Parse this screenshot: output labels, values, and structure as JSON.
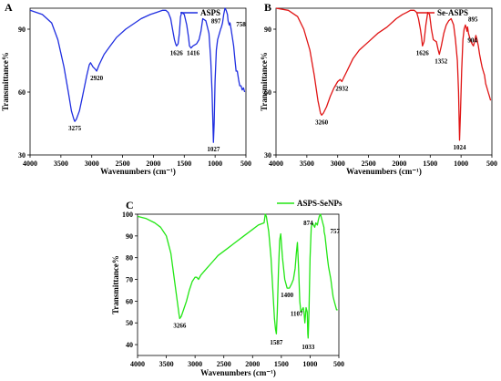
{
  "chart_data": [
    {
      "type": "line",
      "panel": "A",
      "series": [
        {
          "name": "ASPS",
          "color": "#1f2ee0",
          "x": [
            4000,
            3800,
            3650,
            3550,
            3450,
            3380,
            3330,
            3290,
            3275,
            3250,
            3200,
            3150,
            3080,
            3040,
            3020,
            2980,
            2945,
            2920,
            2880,
            2800,
            2700,
            2600,
            2450,
            2300,
            2200,
            2050,
            1950,
            1850,
            1800,
            1760,
            1720,
            1690,
            1660,
            1640,
            1626,
            1600,
            1580,
            1560,
            1540,
            1500,
            1460,
            1430,
            1416,
            1390,
            1360,
            1300,
            1260,
            1230,
            1200,
            1150,
            1100,
            1070,
            1050,
            1035,
            1027,
            1015,
            1000,
            980,
            960,
            930,
            910,
            897,
            880,
            860,
            840,
            820,
            800,
            790,
            780,
            770,
            758,
            740,
            720,
            700,
            680,
            660,
            640,
            620,
            600,
            580,
            560,
            540,
            520
          ],
          "y": [
            99,
            97,
            93,
            85,
            72,
            60,
            51,
            47,
            46,
            47,
            51,
            58,
            68,
            73,
            74,
            72,
            71,
            70,
            73,
            78,
            82,
            86,
            90,
            93,
            95,
            97,
            98,
            99,
            99,
            98,
            95,
            90,
            85,
            83,
            82,
            83,
            88,
            96,
            98,
            97,
            92,
            86,
            82,
            81,
            82,
            83,
            85,
            89,
            95,
            94,
            88,
            75,
            60,
            44,
            36,
            45,
            65,
            80,
            85,
            88,
            90,
            91,
            93,
            97,
            100,
            99,
            97,
            94,
            93,
            92,
            93,
            90,
            86,
            82,
            76,
            70,
            70,
            66,
            63,
            63,
            61,
            62,
            60
          ]
        }
      ],
      "peaks": [
        {
          "x": 3275,
          "y": 46,
          "label": "3275"
        },
        {
          "x": 2920,
          "y": 70,
          "label": "2920"
        },
        {
          "x": 1626,
          "y": 82,
          "label": "1626"
        },
        {
          "x": 1416,
          "y": 82,
          "label": "1416"
        },
        {
          "x": 1027,
          "y": 36,
          "label": "1027"
        },
        {
          "x": 897,
          "y": 91,
          "label": "897"
        },
        {
          "x": 758,
          "y": 93,
          "label": "758"
        }
      ],
      "xlim": [
        4000,
        500
      ],
      "ylim": [
        30,
        100
      ],
      "xticks": [
        4000,
        3500,
        3000,
        2500,
        2000,
        1500,
        1000,
        500
      ],
      "yticks": [
        30,
        60,
        90
      ],
      "xlabel": "Wavenumbers (cm⁻¹)",
      "ylabel": "Transmittance%",
      "legend": "top-right",
      "grid": false
    },
    {
      "type": "line",
      "panel": "B",
      "series": [
        {
          "name": "Se-ASPS",
          "color": "#e01414",
          "x": [
            4000,
            3800,
            3650,
            3550,
            3450,
            3380,
            3320,
            3280,
            3260,
            3230,
            3180,
            3120,
            3060,
            3000,
            2960,
            2932,
            2900,
            2850,
            2750,
            2650,
            2500,
            2350,
            2200,
            2050,
            1950,
            1880,
            1820,
            1760,
            1720,
            1690,
            1660,
            1640,
            1626,
            1600,
            1570,
            1540,
            1510,
            1480,
            1450,
            1400,
            1370,
            1352,
            1320,
            1280,
            1240,
            1200,
            1160,
            1120,
            1090,
            1060,
            1040,
            1030,
            1024,
            1010,
            990,
            970,
            950,
            930,
            920,
            910,
            904,
            895,
            880,
            860,
            840,
            820,
            800,
            780,
            760,
            740,
            720,
            700,
            680,
            660,
            640,
            620,
            600,
            580,
            560,
            540,
            520
          ],
          "y": [
            100,
            99,
            96,
            90,
            80,
            68,
            56,
            50,
            49,
            50,
            53,
            58,
            62,
            65,
            66,
            65,
            67,
            70,
            76,
            80,
            84,
            88,
            91,
            95,
            97,
            98,
            99,
            99,
            98,
            95,
            90,
            86,
            82,
            84,
            92,
            98,
            97,
            90,
            85,
            84,
            80,
            78,
            82,
            88,
            92,
            94,
            95,
            92,
            85,
            75,
            60,
            45,
            37,
            50,
            70,
            85,
            90,
            92,
            91,
            90,
            89,
            91,
            88,
            86,
            84,
            83,
            82,
            84,
            87,
            85,
            82,
            78,
            75,
            72,
            70,
            68,
            64,
            62,
            60,
            58,
            56
          ]
        }
      ],
      "peaks": [
        {
          "x": 3260,
          "y": 49,
          "label": "3260"
        },
        {
          "x": 2932,
          "y": 65,
          "label": "2932"
        },
        {
          "x": 1626,
          "y": 82,
          "label": "1626"
        },
        {
          "x": 1352,
          "y": 78,
          "label": "1352"
        },
        {
          "x": 1024,
          "y": 37,
          "label": "1024"
        },
        {
          "x": 895,
          "y": 91,
          "label": "895"
        },
        {
          "x": 904,
          "y": 89,
          "label": "904"
        }
      ],
      "xlim": [
        4000,
        500
      ],
      "ylim": [
        30,
        100
      ],
      "xticks": [
        4000,
        3500,
        3000,
        2500,
        2000,
        1500,
        1000,
        500
      ],
      "yticks": [
        30,
        60,
        90
      ],
      "xlabel": "Wavenumbers (cm⁻¹)",
      "ylabel": "Transmittance%",
      "legend": "top-right",
      "grid": false
    },
    {
      "type": "line",
      "panel": "C",
      "series": [
        {
          "name": "ASPS-SeNPs",
          "color": "#22e614",
          "x": [
            4000,
            3850,
            3700,
            3600,
            3500,
            3420,
            3360,
            3310,
            3280,
            3266,
            3240,
            3200,
            3150,
            3100,
            3050,
            3000,
            2970,
            2940,
            2900,
            2800,
            2700,
            2600,
            2450,
            2300,
            2150,
            2000,
            1900,
            1800,
            1780,
            1760,
            1720,
            1680,
            1650,
            1620,
            1600,
            1587,
            1570,
            1550,
            1530,
            1510,
            1480,
            1440,
            1400,
            1360,
            1320,
            1290,
            1260,
            1240,
            1220,
            1200,
            1180,
            1160,
            1140,
            1120,
            1107,
            1090,
            1070,
            1050,
            1040,
            1033,
            1020,
            1000,
            980,
            960,
            940,
            920,
            900,
            874,
            860,
            840,
            820,
            800,
            780,
            760,
            757,
            740,
            720,
            700,
            680,
            660,
            640,
            620,
            600,
            580,
            560,
            540,
            520
          ],
          "y": [
            99,
            98,
            96,
            94,
            90,
            82,
            70,
            60,
            54,
            52,
            53,
            56,
            60,
            65,
            69,
            71,
            71,
            70,
            72,
            75,
            78,
            81,
            84,
            87,
            90,
            93,
            95,
            96,
            100,
            99,
            92,
            80,
            66,
            52,
            47,
            45,
            55,
            74,
            88,
            91,
            80,
            70,
            66,
            66,
            68,
            70,
            75,
            82,
            87,
            75,
            60,
            55,
            56,
            57,
            55,
            50,
            57,
            55,
            45,
            43,
            55,
            80,
            94,
            96,
            95,
            94,
            96,
            95,
            97,
            99,
            100,
            98,
            96,
            94,
            92,
            90,
            85,
            80,
            76,
            73,
            70,
            66,
            62,
            60,
            58,
            56,
            56
          ]
        }
      ],
      "peaks": [
        {
          "x": 3266,
          "y": 52,
          "label": "3266"
        },
        {
          "x": 1587,
          "y": 45,
          "label": "1587"
        },
        {
          "x": 1400,
          "y": 66,
          "label": "1400"
        },
        {
          "x": 1107,
          "y": 55,
          "label": "1107"
        },
        {
          "x": 1033,
          "y": 43,
          "label": "1033"
        },
        {
          "x": 874,
          "y": 95,
          "label": "874"
        },
        {
          "x": 757,
          "y": 92,
          "label": "757"
        }
      ],
      "xlim": [
        4000,
        500
      ],
      "ylim": [
        35,
        100
      ],
      "xticks": [
        4000,
        3500,
        3000,
        2500,
        2000,
        1500,
        1000,
        500
      ],
      "yticks": [
        40,
        50,
        60,
        70,
        80,
        90,
        100
      ],
      "xlabel": "Wavenumbers (cm⁻¹)",
      "ylabel": "Transmittance%",
      "legend": "top-right",
      "grid": false
    }
  ]
}
